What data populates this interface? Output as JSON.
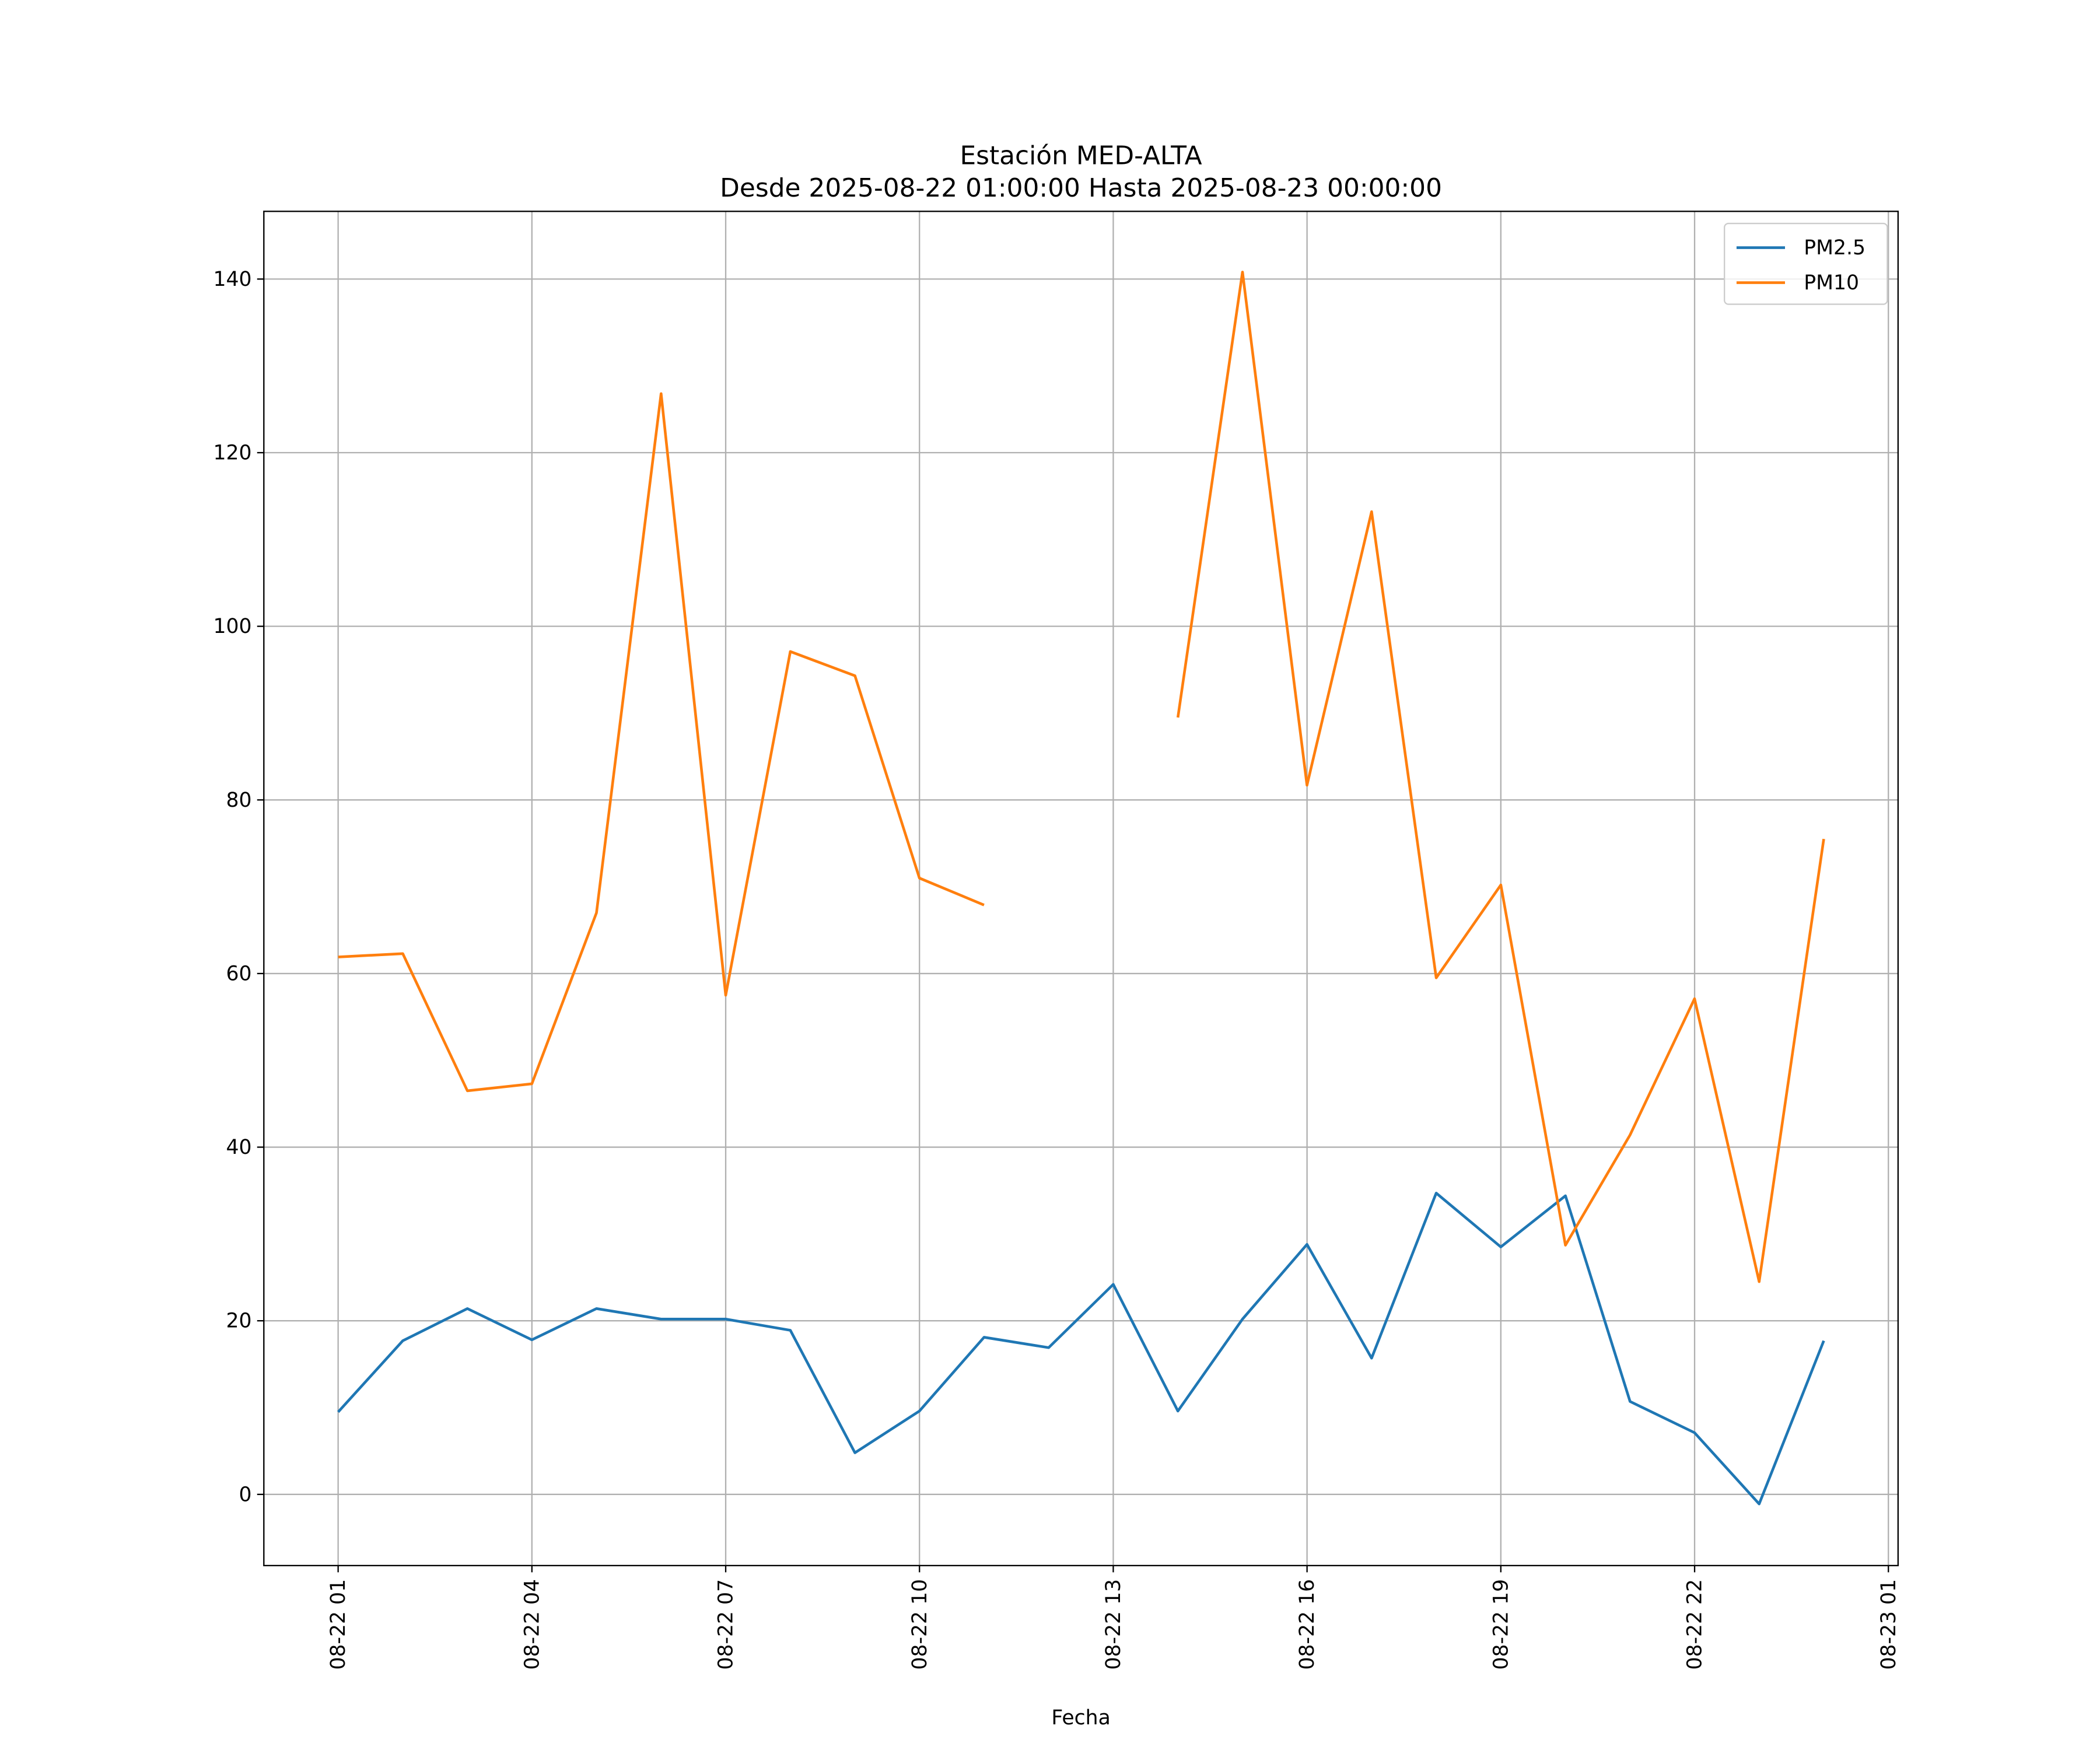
{
  "chart_data": {
    "type": "line",
    "title": "Estación MED-ALTA",
    "subtitle": "Desde 2025-08-22 01:00:00 Hasta 2025-08-23 00:00:00",
    "xlabel": "Fecha",
    "ylabel": "",
    "x_hours": [
      0,
      1,
      2,
      3,
      4,
      5,
      6,
      7,
      8,
      9,
      10,
      11,
      12,
      13,
      14,
      15,
      16,
      17,
      18,
      19,
      20,
      21,
      22,
      23
    ],
    "x_tick_hours": [
      0,
      3,
      6,
      9,
      12,
      15,
      18,
      21,
      24
    ],
    "x_tick_labels": [
      "08-22 01",
      "08-22 04",
      "08-22 07",
      "08-22 10",
      "08-22 13",
      "08-22 16",
      "08-22 19",
      "08-22 22",
      "08-23 01"
    ],
    "xlim_hours": [
      -1.15,
      24.15
    ],
    "ylim": [
      -8.2,
      147.8
    ],
    "y_ticks": [
      0,
      20,
      40,
      60,
      80,
      100,
      120,
      140
    ],
    "grid": true,
    "legend_position": "top-right",
    "series": [
      {
        "name": "PM2.5",
        "color": "#1f77b4",
        "values": [
          9.5,
          17.7,
          21.4,
          17.8,
          21.4,
          20.2,
          20.2,
          18.9,
          4.8,
          9.6,
          18.1,
          16.9,
          24.2,
          9.6,
          20.2,
          28.8,
          15.7,
          34.7,
          28.5,
          34.4,
          10.7,
          7.1,
          -1.1,
          17.7
        ]
      },
      {
        "name": "PM10",
        "color": "#ff7f0e",
        "values": [
          61.9,
          62.3,
          46.5,
          47.3,
          67.0,
          126.8,
          57.5,
          97.1,
          94.3,
          71.0,
          67.9,
          null,
          null,
          89.5,
          140.8,
          81.7,
          113.2,
          59.5,
          70.2,
          28.7,
          41.4,
          57.1,
          24.5,
          75.5
        ]
      }
    ]
  }
}
